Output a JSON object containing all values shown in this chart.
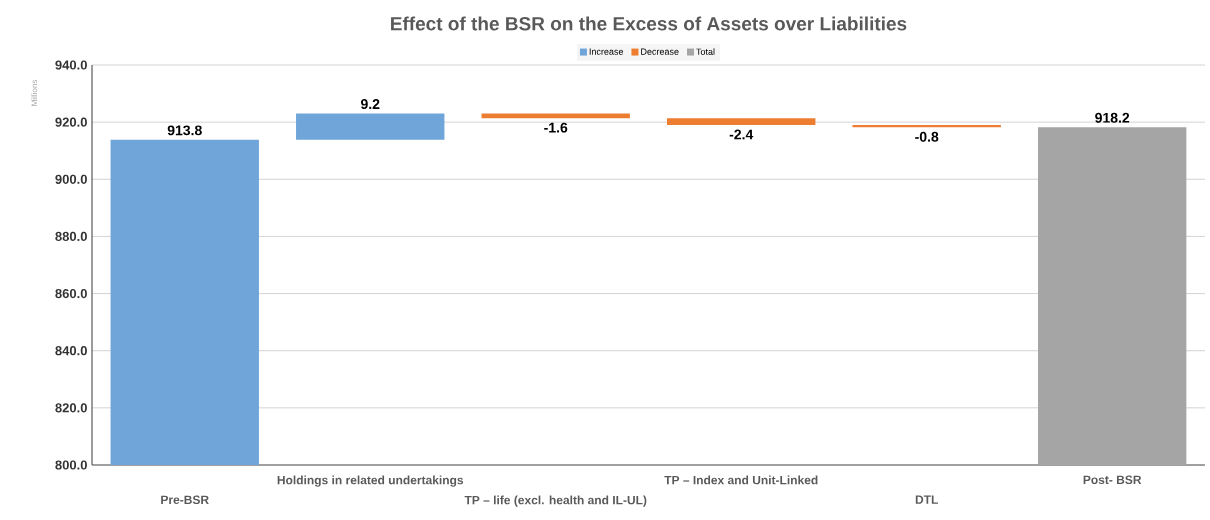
{
  "chart_data": {
    "type": "bar",
    "title": "Effect of the BSR on the Excess of Assets over Liabilities",
    "ylabel": "Millions",
    "categories": [
      "Pre-BSR",
      "Holdings in related undertakings",
      "TP – life (excl. health and IL-UL)",
      "TP – Index and Unit-Linked",
      "DTL",
      "Post- BSR"
    ],
    "series": [
      {
        "name": "Increase",
        "color": "#6fa5d9",
        "values": [
          913.8,
          9.2,
          null,
          null,
          null,
          null
        ],
        "base": [
          null,
          913.8,
          null,
          null,
          null,
          null
        ]
      },
      {
        "name": "Decrease",
        "color": "#ed7d31",
        "values": [
          null,
          null,
          -1.6,
          -2.4,
          -0.8,
          null
        ],
        "base": [
          null,
          null,
          923.0,
          921.4,
          919.0,
          null
        ]
      },
      {
        "name": "Total",
        "color": "#a5a5a5",
        "values": [
          null,
          null,
          null,
          null,
          null,
          918.2
        ],
        "base": [
          null,
          null,
          null,
          null,
          null,
          null
        ]
      }
    ],
    "ylim": [
      800,
      940
    ],
    "yticks": [
      {
        "value": 800,
        "label": "800.0"
      },
      {
        "value": 820,
        "label": "820.0"
      },
      {
        "value": 840,
        "label": "840.0"
      },
      {
        "value": 860,
        "label": "860.0"
      },
      {
        "value": 880,
        "label": "880.0"
      },
      {
        "value": 900,
        "label": "900.0"
      },
      {
        "value": 920,
        "label": "920.0"
      },
      {
        "value": 940,
        "label": "940.0"
      }
    ],
    "grid": "y",
    "legend": "top",
    "data_labels": true
  }
}
